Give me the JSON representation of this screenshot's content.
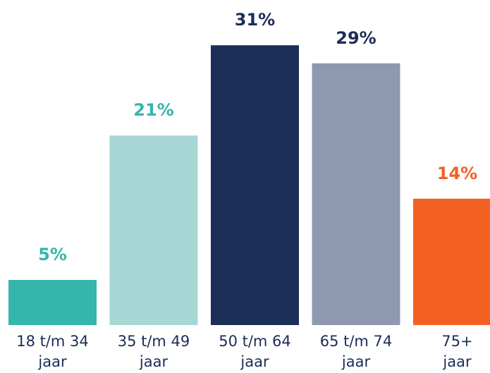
{
  "chart_data": {
    "type": "bar",
    "title": "",
    "xlabel": "",
    "ylabel": "",
    "ylim": [
      0,
      31
    ],
    "grid": false,
    "legend": "none",
    "categories": [
      [
        "18 t/m 34",
        "jaar"
      ],
      [
        "35 t/m 49",
        "jaar"
      ],
      [
        "50 t/m 64",
        "jaar"
      ],
      [
        "65 t/m 74",
        "jaar"
      ],
      [
        "75+",
        "jaar"
      ]
    ],
    "values": [
      5,
      21,
      31,
      29,
      14
    ],
    "value_labels": [
      "5%",
      "21%",
      "31%",
      "29%",
      "14%"
    ],
    "bar_colors": [
      "#35b5ab",
      "#a6d7d5",
      "#1b2e57",
      "#8e98b0",
      "#f26122"
    ],
    "label_colors": [
      "#35b5ab",
      "#35b5ab",
      "#1b2e57",
      "#1b2e57",
      "#f26122"
    ]
  }
}
